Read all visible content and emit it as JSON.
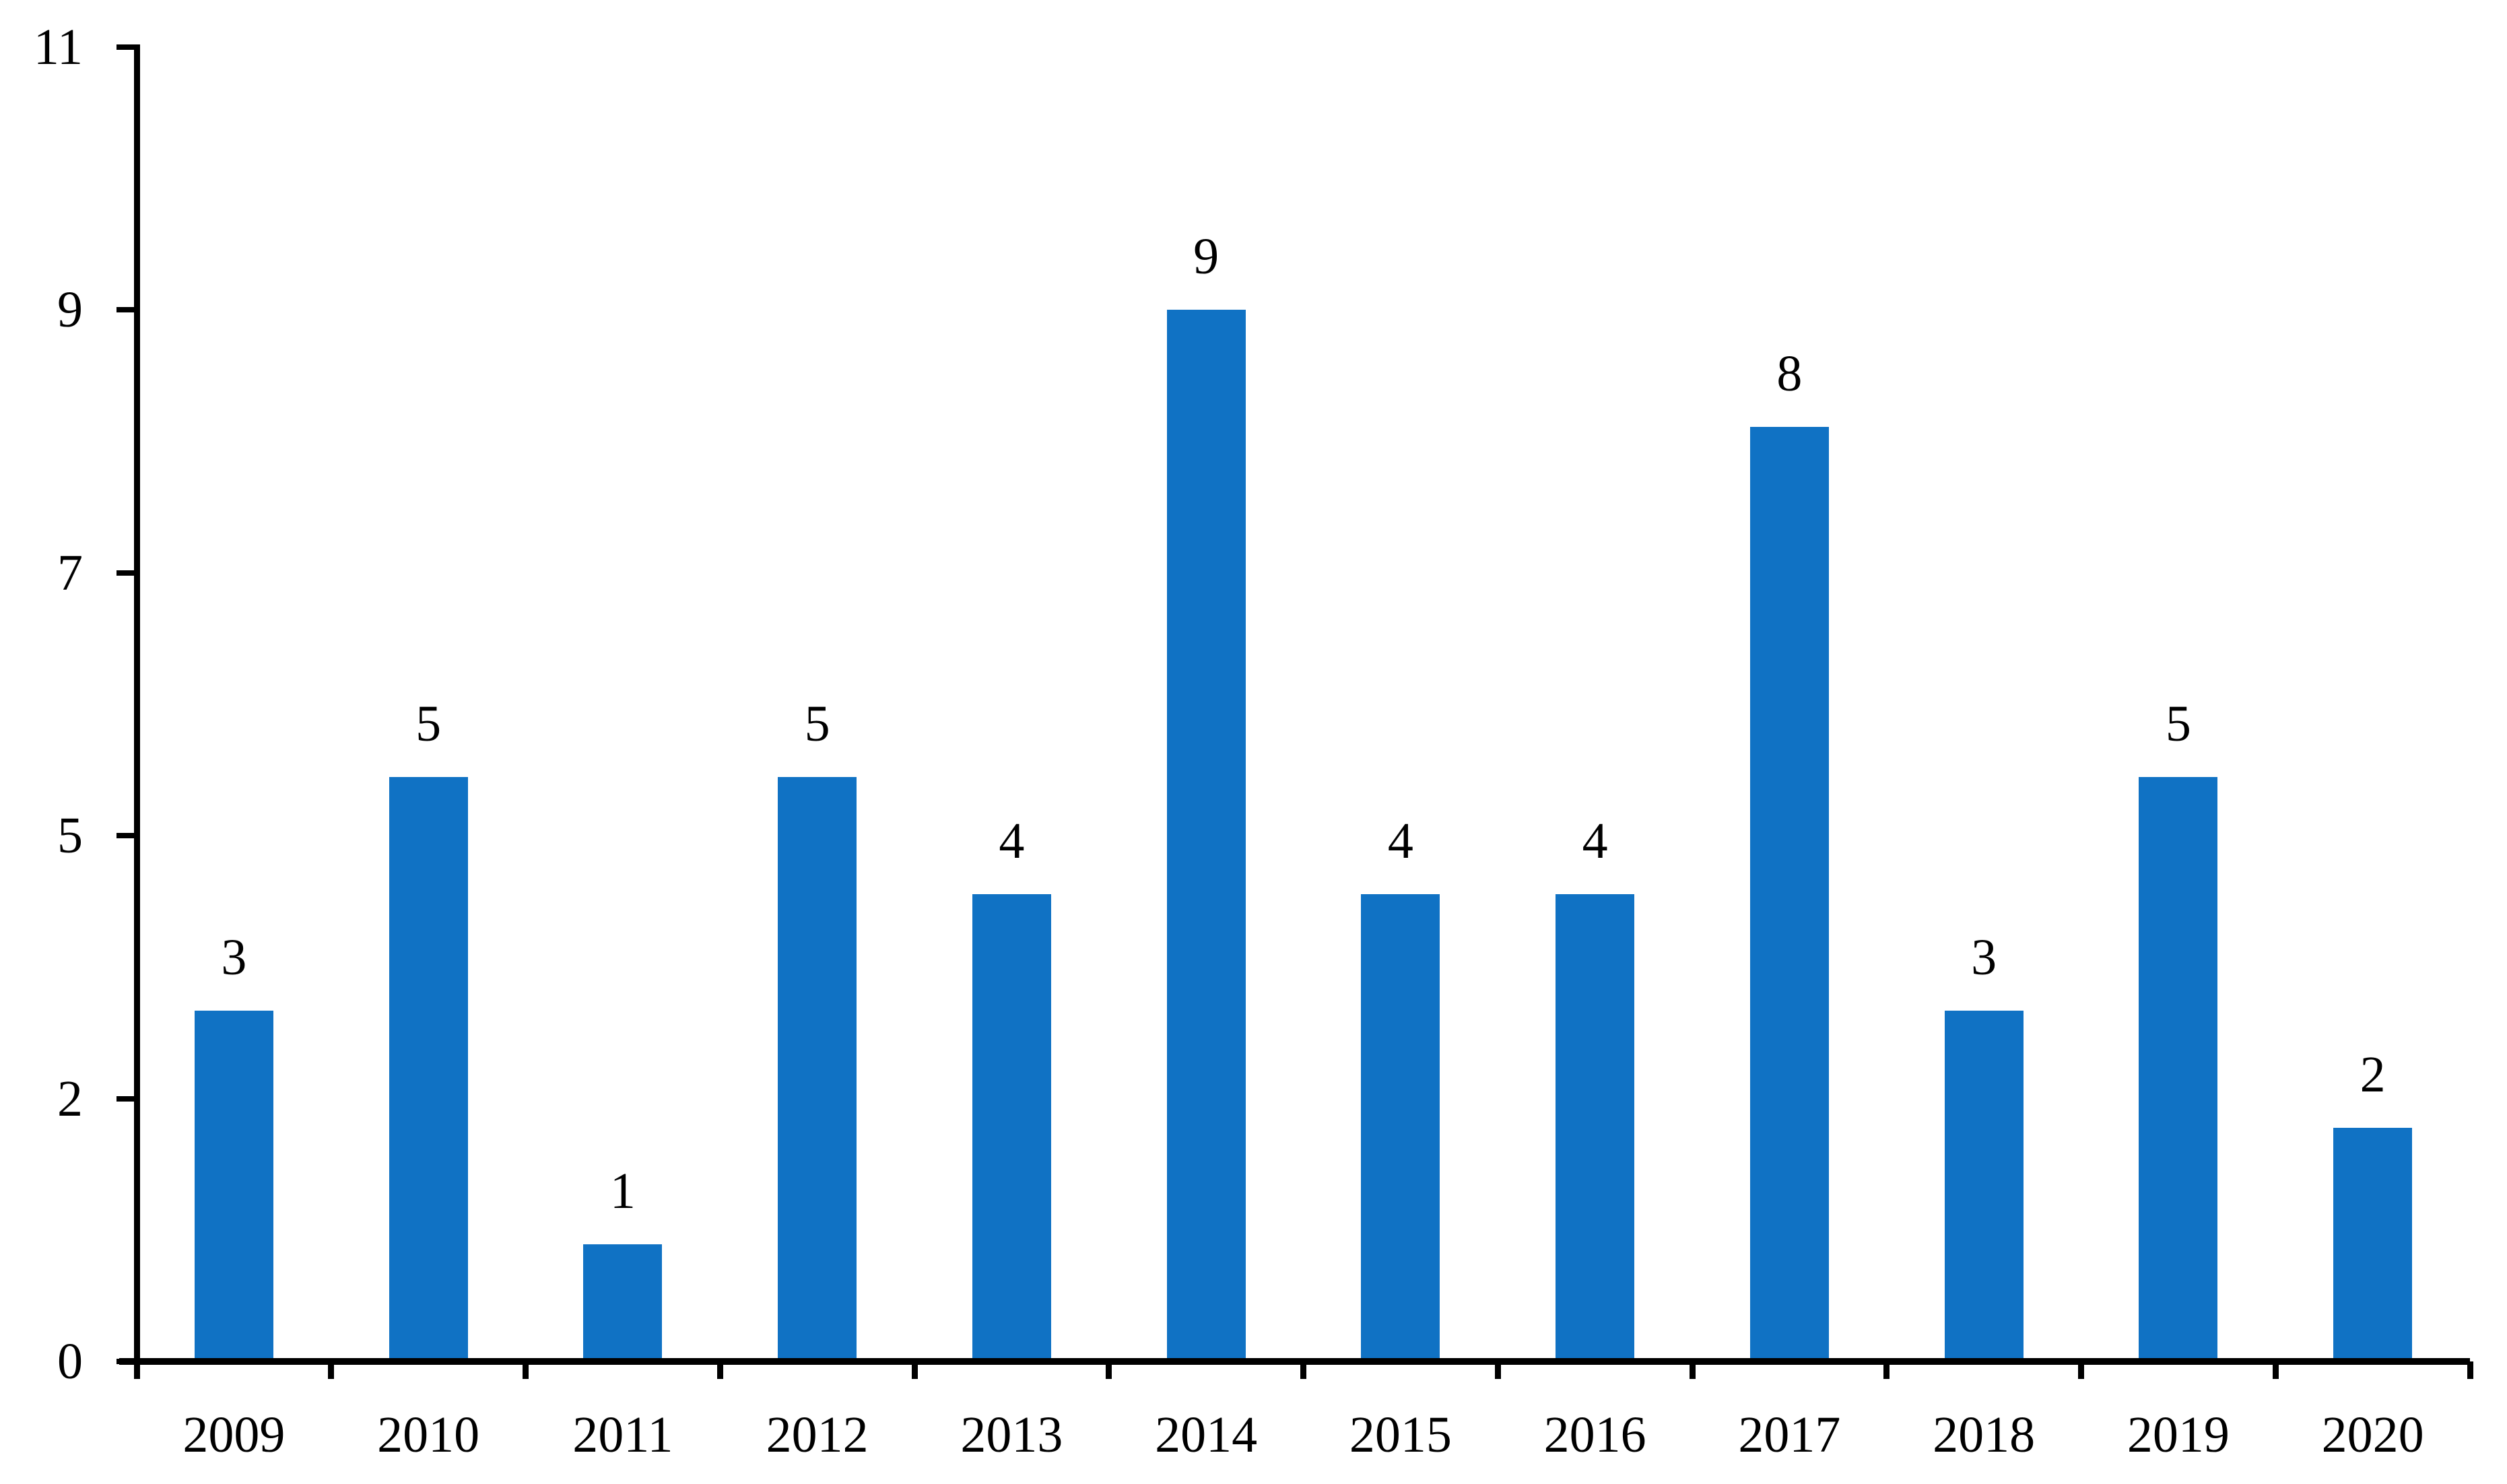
{
  "chart_data": {
    "type": "bar",
    "title": "",
    "xlabel": "",
    "ylabel": "",
    "categories": [
      "2009",
      "2010",
      "2011",
      "2012",
      "2013",
      "2014",
      "2015",
      "2016",
      "2017",
      "2018",
      "2019",
      "2020"
    ],
    "values": [
      3,
      5,
      1,
      5,
      4,
      9,
      4,
      4,
      8,
      3,
      5,
      2
    ],
    "bar_labels": [
      "3",
      "5",
      "1",
      "5",
      "4",
      "9",
      "4",
      "4",
      "8",
      "3",
      "5",
      "2"
    ],
    "ytick_labels": [
      "0",
      "2",
      "5",
      "7",
      "9",
      "11"
    ],
    "ylim": [
      0,
      11.25
    ],
    "grid": false,
    "legend": false,
    "bar_color": "#1072C4",
    "axis_color": "#000000",
    "background_color": "#FFFFFF"
  }
}
